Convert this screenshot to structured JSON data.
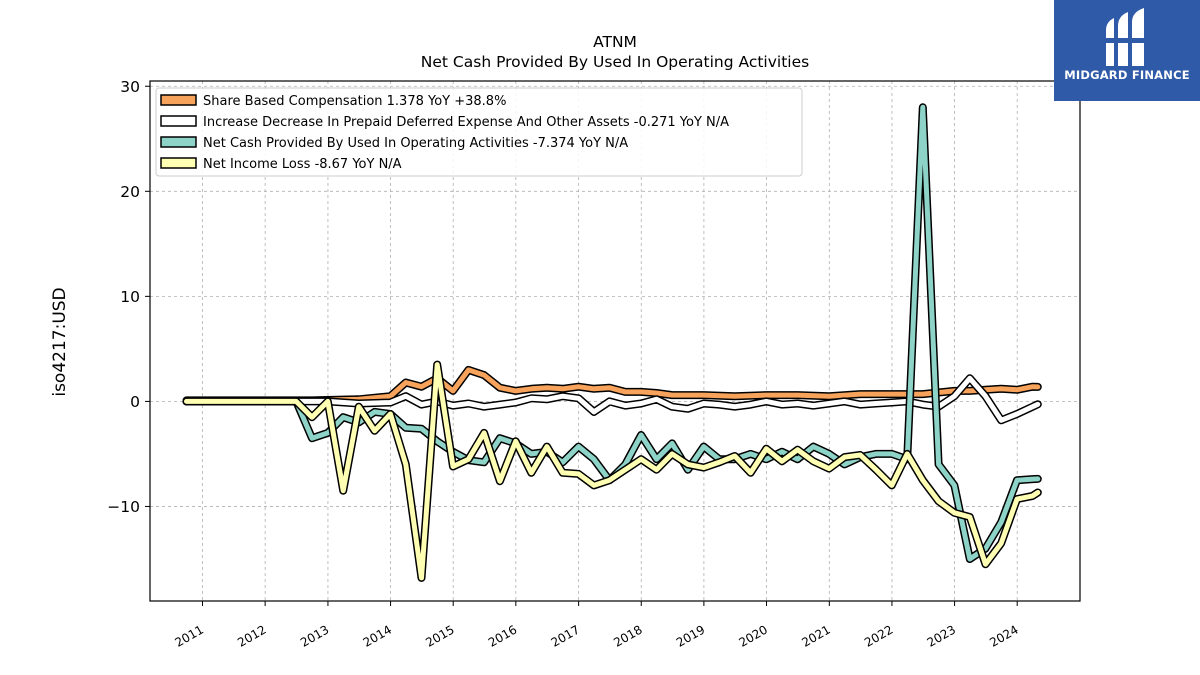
{
  "brand": {
    "name": "MIDGARD FINANCE",
    "icon": "midgard-logo-icon",
    "background": "#2f5aa8"
  },
  "chart_data": {
    "type": "line",
    "title": "ATNM",
    "subtitle": "Net Cash Provided By Used In Operating Activities",
    "xlabel": "",
    "ylabel": "iso4217:USD",
    "xlim": [
      "2010-03-01",
      "2025-01-01"
    ],
    "ylim": [
      -19,
      30.5
    ],
    "y_ticks": [
      30,
      20,
      10,
      0,
      -10
    ],
    "y_tick_labels": [
      "30",
      "20",
      "10",
      "0",
      "−10"
    ],
    "x_ticks": [
      "2011",
      "2012",
      "2013",
      "2014",
      "2015",
      "2016",
      "2017",
      "2018",
      "2019",
      "2020",
      "2021",
      "2022",
      "2023",
      "2024"
    ],
    "grid": true,
    "legend_position": "top-left",
    "series": [
      {
        "name": "Share Based Compensation",
        "legend_label": "Share Based Compensation  1.378 YoY +38.8%",
        "color": "#f7a35c",
        "points": [
          [
            "2010-09-30",
            0.1
          ],
          [
            "2011-12-31",
            0.1
          ],
          [
            "2012-09-30",
            0.1
          ],
          [
            "2013-06-30",
            0.2
          ],
          [
            "2013-12-31",
            0.5
          ],
          [
            "2014-03-31",
            1.8
          ],
          [
            "2014-06-30",
            1.4
          ],
          [
            "2014-09-30",
            2.2
          ],
          [
            "2014-12-31",
            1.0
          ],
          [
            "2015-03-31",
            3.0
          ],
          [
            "2015-06-30",
            2.5
          ],
          [
            "2015-09-30",
            1.3
          ],
          [
            "2015-12-31",
            1.0
          ],
          [
            "2016-03-31",
            1.2
          ],
          [
            "2016-06-30",
            1.3
          ],
          [
            "2016-09-30",
            1.2
          ],
          [
            "2016-12-31",
            1.4
          ],
          [
            "2017-03-31",
            1.2
          ],
          [
            "2017-06-30",
            1.3
          ],
          [
            "2017-09-30",
            0.9
          ],
          [
            "2017-12-31",
            0.9
          ],
          [
            "2018-03-31",
            0.8
          ],
          [
            "2018-06-30",
            0.6
          ],
          [
            "2018-09-30",
            0.6
          ],
          [
            "2018-12-31",
            0.6
          ],
          [
            "2019-06-30",
            0.5
          ],
          [
            "2019-12-31",
            0.6
          ],
          [
            "2020-06-30",
            0.6
          ],
          [
            "2020-12-31",
            0.5
          ],
          [
            "2021-06-30",
            0.7
          ],
          [
            "2021-12-31",
            0.7
          ],
          [
            "2022-06-30",
            0.7
          ],
          [
            "2022-12-31",
            1.0
          ],
          [
            "2023-03-31",
            1.0
          ],
          [
            "2023-06-30",
            1.1
          ],
          [
            "2023-09-30",
            1.2
          ],
          [
            "2023-12-31",
            1.1
          ],
          [
            "2024-03-31",
            1.4
          ],
          [
            "2024-04-30",
            1.378
          ]
        ]
      },
      {
        "name": "Increase Decrease In Prepaid Deferred Expense And Other Assets",
        "legend_label": "Increase Decrease In Prepaid Deferred Expense And Other Assets  -0.271 YoY N/A",
        "color": "#ffffff",
        "points": [
          [
            "2010-09-30",
            0.0
          ],
          [
            "2012-06-30",
            0.0
          ],
          [
            "2012-12-31",
            0.0
          ],
          [
            "2013-06-30",
            -0.2
          ],
          [
            "2013-12-31",
            -0.1
          ],
          [
            "2014-03-31",
            0.5
          ],
          [
            "2014-06-30",
            -0.3
          ],
          [
            "2014-09-30",
            0.0
          ],
          [
            "2014-12-31",
            -0.4
          ],
          [
            "2015-03-31",
            -0.2
          ],
          [
            "2015-06-30",
            -0.5
          ],
          [
            "2015-09-30",
            -0.3
          ],
          [
            "2015-12-31",
            -0.1
          ],
          [
            "2016-03-31",
            0.3
          ],
          [
            "2016-06-30",
            0.2
          ],
          [
            "2016-09-30",
            0.5
          ],
          [
            "2016-12-31",
            0.3
          ],
          [
            "2017-03-31",
            -1.0
          ],
          [
            "2017-06-30",
            0.0
          ],
          [
            "2017-09-30",
            -0.4
          ],
          [
            "2017-12-31",
            -0.2
          ],
          [
            "2018-03-31",
            0.2
          ],
          [
            "2018-06-30",
            -0.5
          ],
          [
            "2018-09-30",
            -0.7
          ],
          [
            "2018-12-31",
            -0.2
          ],
          [
            "2019-03-31",
            -0.3
          ],
          [
            "2019-06-30",
            -0.5
          ],
          [
            "2019-09-30",
            -0.3
          ],
          [
            "2019-12-31",
            0.0
          ],
          [
            "2020-03-31",
            -0.3
          ],
          [
            "2020-06-30",
            -0.2
          ],
          [
            "2020-09-30",
            -0.4
          ],
          [
            "2020-12-31",
            -0.2
          ],
          [
            "2021-03-31",
            0.0
          ],
          [
            "2021-06-30",
            -0.3
          ],
          [
            "2021-09-30",
            -0.2
          ],
          [
            "2021-12-31",
            -0.1
          ],
          [
            "2022-03-31",
            0.0
          ],
          [
            "2022-06-30",
            -0.3
          ],
          [
            "2022-09-30",
            -0.5
          ],
          [
            "2022-12-31",
            0.5
          ],
          [
            "2023-03-31",
            2.2
          ],
          [
            "2023-06-30",
            0.5
          ],
          [
            "2023-09-30",
            -1.8
          ],
          [
            "2023-12-31",
            -1.2
          ],
          [
            "2024-03-31",
            -0.5
          ],
          [
            "2024-04-30",
            -0.271
          ]
        ]
      },
      {
        "name": "Net Cash Provided By Used In Operating Activities",
        "legend_label": "Net Cash Provided By Used In Operating Activities  -7.374 YoY N/A",
        "color": "#8dd3c7",
        "points": [
          [
            "2010-09-30",
            0.0
          ],
          [
            "2012-03-31",
            0.0
          ],
          [
            "2012-06-30",
            0.0
          ],
          [
            "2012-09-30",
            -3.5
          ],
          [
            "2012-12-31",
            -3.0
          ],
          [
            "2013-03-31",
            -1.5
          ],
          [
            "2013-06-30",
            -2.0
          ],
          [
            "2013-09-30",
            -1.0
          ],
          [
            "2013-12-31",
            -1.2
          ],
          [
            "2014-03-31",
            -2.5
          ],
          [
            "2014-06-30",
            -2.6
          ],
          [
            "2014-09-30",
            -3.8
          ],
          [
            "2014-12-31",
            -4.8
          ],
          [
            "2015-03-31",
            -5.6
          ],
          [
            "2015-06-30",
            -5.8
          ],
          [
            "2015-09-30",
            -3.5
          ],
          [
            "2015-12-31",
            -4.0
          ],
          [
            "2016-03-31",
            -5.0
          ],
          [
            "2016-06-30",
            -4.8
          ],
          [
            "2016-09-30",
            -5.8
          ],
          [
            "2016-12-31",
            -4.3
          ],
          [
            "2017-03-31",
            -5.5
          ],
          [
            "2017-06-30",
            -7.5
          ],
          [
            "2017-09-30",
            -6.0
          ],
          [
            "2017-12-31",
            -3.2
          ],
          [
            "2018-03-31",
            -5.5
          ],
          [
            "2018-06-30",
            -4.0
          ],
          [
            "2018-09-30",
            -6.5
          ],
          [
            "2018-12-31",
            -4.3
          ],
          [
            "2019-03-31",
            -5.5
          ],
          [
            "2019-06-30",
            -5.5
          ],
          [
            "2019-09-30",
            -5.0
          ],
          [
            "2019-12-31",
            -5.5
          ],
          [
            "2020-03-31",
            -4.8
          ],
          [
            "2020-06-30",
            -5.5
          ],
          [
            "2020-09-30",
            -4.3
          ],
          [
            "2020-12-31",
            -5.0
          ],
          [
            "2021-03-31",
            -6.0
          ],
          [
            "2021-06-30",
            -5.3
          ],
          [
            "2021-09-30",
            -5.0
          ],
          [
            "2021-12-31",
            -5.0
          ],
          [
            "2022-03-31",
            -5.5
          ],
          [
            "2022-06-30",
            28.0
          ],
          [
            "2022-09-30",
            -6.0
          ],
          [
            "2022-12-31",
            -8.0
          ],
          [
            "2023-03-31",
            -15.0
          ],
          [
            "2023-06-30",
            -14.0
          ],
          [
            "2023-09-30",
            -11.5
          ],
          [
            "2023-12-31",
            -7.5
          ],
          [
            "2024-03-31",
            -7.4
          ],
          [
            "2024-04-30",
            -7.374
          ]
        ]
      },
      {
        "name": "Net Income Loss",
        "legend_label": "Net Income Loss  -8.67 YoY N/A",
        "color": "#ffffb3",
        "points": [
          [
            "2010-09-30",
            0.0
          ],
          [
            "2012-03-31",
            0.0
          ],
          [
            "2012-06-30",
            0.0
          ],
          [
            "2012-09-30",
            -1.5
          ],
          [
            "2012-12-31",
            0.0
          ],
          [
            "2013-03-31",
            -8.5
          ],
          [
            "2013-06-30",
            -0.5
          ],
          [
            "2013-09-30",
            -2.8
          ],
          [
            "2013-12-31",
            -1.2
          ],
          [
            "2014-03-31",
            -6.0
          ],
          [
            "2014-06-30",
            -16.8
          ],
          [
            "2014-09-30",
            3.5
          ],
          [
            "2014-12-31",
            -6.2
          ],
          [
            "2015-03-31",
            -5.5
          ],
          [
            "2015-06-30",
            -3.0
          ],
          [
            "2015-09-30",
            -7.6
          ],
          [
            "2015-12-31",
            -3.8
          ],
          [
            "2016-03-31",
            -6.8
          ],
          [
            "2016-06-30",
            -4.3
          ],
          [
            "2016-09-30",
            -6.8
          ],
          [
            "2016-12-31",
            -6.9
          ],
          [
            "2017-03-31",
            -8.0
          ],
          [
            "2017-06-30",
            -7.5
          ],
          [
            "2017-09-30",
            -6.5
          ],
          [
            "2017-12-31",
            -5.5
          ],
          [
            "2018-03-31",
            -6.5
          ],
          [
            "2018-06-30",
            -5.0
          ],
          [
            "2018-09-30",
            -6.0
          ],
          [
            "2018-12-31",
            -6.3
          ],
          [
            "2019-03-31",
            -5.8
          ],
          [
            "2019-06-30",
            -5.2
          ],
          [
            "2019-09-30",
            -6.8
          ],
          [
            "2019-12-31",
            -4.5
          ],
          [
            "2020-03-31",
            -5.7
          ],
          [
            "2020-06-30",
            -4.6
          ],
          [
            "2020-09-30",
            -5.7
          ],
          [
            "2020-12-31",
            -6.4
          ],
          [
            "2021-03-31",
            -5.3
          ],
          [
            "2021-06-30",
            -5.1
          ],
          [
            "2021-09-30",
            -6.5
          ],
          [
            "2021-12-31",
            -8.0
          ],
          [
            "2022-03-31",
            -5.0
          ],
          [
            "2022-06-30",
            -7.5
          ],
          [
            "2022-09-30",
            -9.5
          ],
          [
            "2022-12-31",
            -10.6
          ],
          [
            "2023-03-31",
            -11.0
          ],
          [
            "2023-06-30",
            -15.5
          ],
          [
            "2023-09-30",
            -13.5
          ],
          [
            "2023-12-31",
            -9.3
          ],
          [
            "2024-03-31",
            -9.0
          ],
          [
            "2024-04-30",
            -8.67
          ]
        ]
      }
    ]
  }
}
